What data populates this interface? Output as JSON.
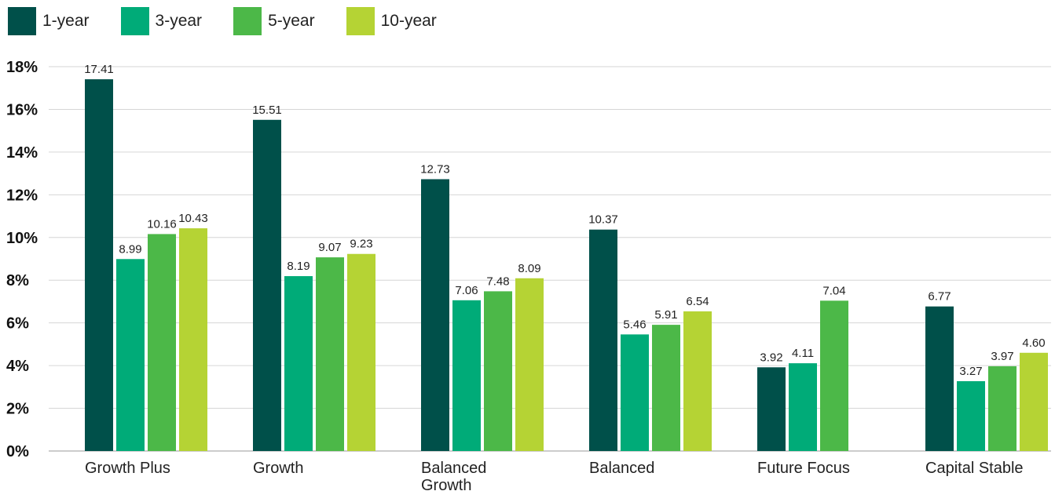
{
  "chart_data": {
    "type": "bar",
    "categories": [
      "Growth Plus",
      "Growth",
      "Balanced Growth",
      "Balanced",
      "Future Focus",
      "Capital Stable"
    ],
    "category_lines": [
      [
        "Growth Plus"
      ],
      [
        "Growth"
      ],
      [
        "Balanced",
        "Growth"
      ],
      [
        "Balanced"
      ],
      [
        "Future Focus"
      ],
      [
        "Capital Stable"
      ]
    ],
    "series": [
      {
        "name": "1-year",
        "color": "#00504a",
        "values": [
          17.41,
          15.51,
          12.73,
          10.37,
          3.92,
          6.77
        ],
        "labels": [
          "17.41",
          "15.51",
          "12.73",
          "10.37",
          "3.92",
          "6.77"
        ]
      },
      {
        "name": "3-year",
        "color": "#00ab78",
        "values": [
          8.99,
          8.19,
          7.06,
          5.46,
          4.11,
          3.27
        ],
        "labels": [
          "8.99",
          "8.19",
          "7.06",
          "5.46",
          "4.11",
          "3.27"
        ]
      },
      {
        "name": "5-year",
        "color": "#4cb848",
        "values": [
          10.16,
          9.07,
          7.48,
          5.91,
          7.04,
          3.97
        ],
        "labels": [
          "10.16",
          "9.07",
          "7.48",
          "5.91",
          "7.04",
          "3.97"
        ]
      },
      {
        "name": "10-year",
        "color": "#b5d334",
        "values": [
          10.43,
          9.23,
          8.09,
          6.54,
          null,
          4.6
        ],
        "labels": [
          "10.43",
          "9.23",
          "8.09",
          "6.54",
          "",
          "4.60"
        ]
      }
    ],
    "yticks": [
      "0%",
      "2%",
      "4%",
      "6%",
      "8%",
      "10%",
      "12%",
      "14%",
      "16%",
      "18%"
    ],
    "ylim": [
      0,
      18
    ],
    "grid": true,
    "legend": "top-left",
    "title": "",
    "xlabel": "",
    "ylabel": ""
  }
}
